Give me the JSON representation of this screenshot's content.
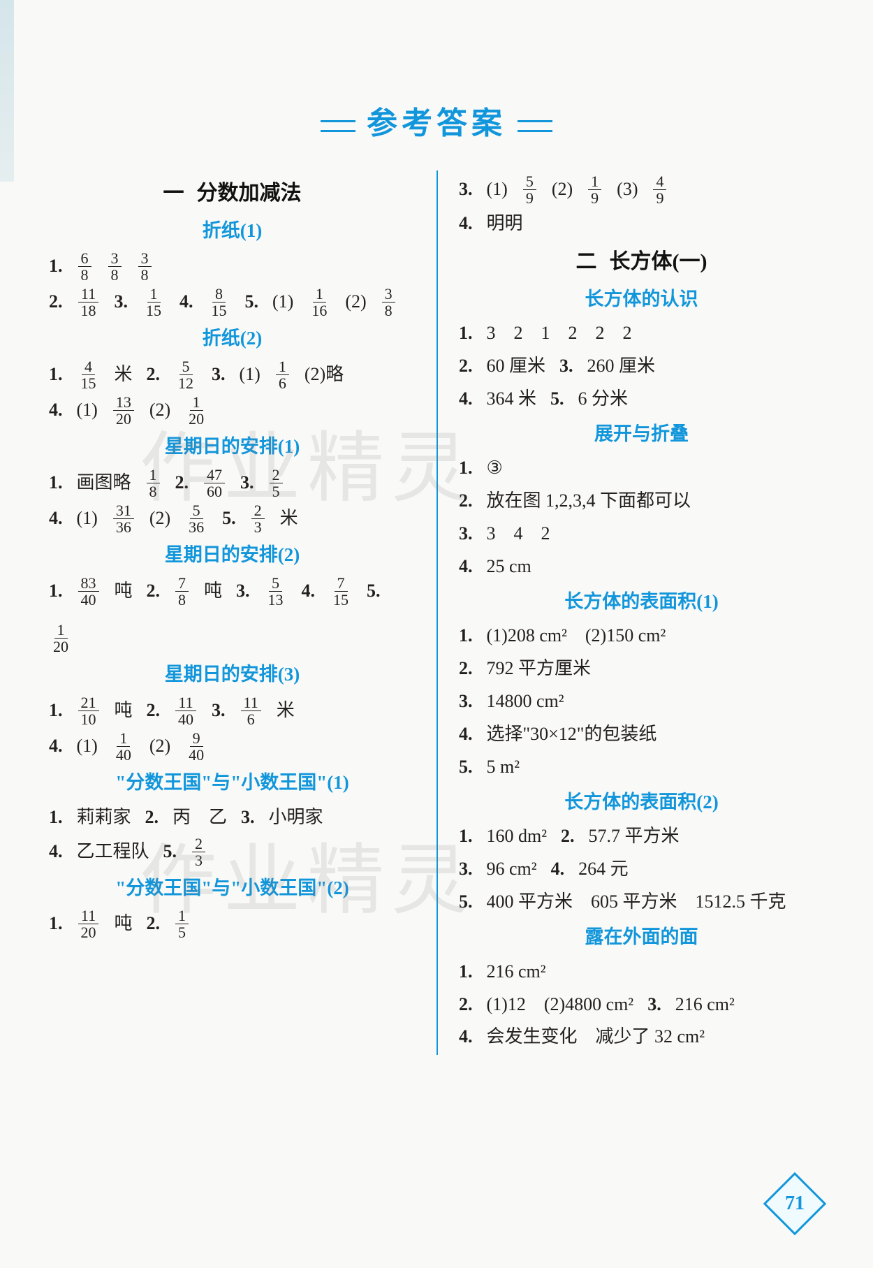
{
  "title": "参考答案",
  "page_number": "71",
  "watermark_text": "作业精灵",
  "colors": {
    "accent": "#1296db",
    "text": "#231f20",
    "background": "#f9f9f7"
  },
  "left": {
    "chapter": {
      "num": "一",
      "title": "分数加减法"
    },
    "sections": [
      {
        "title": "折纸(1)",
        "lines": [
          [
            {
              "t": "n",
              "v": "1."
            },
            {
              "t": "f",
              "n": "6",
              "d": "8"
            },
            {
              "t": "f",
              "n": "3",
              "d": "8"
            },
            {
              "t": "f",
              "n": "3",
              "d": "8"
            }
          ],
          [
            {
              "t": "n",
              "v": "2."
            },
            {
              "t": "f",
              "n": "11",
              "d": "18"
            },
            {
              "t": "n",
              "v": "3."
            },
            {
              "t": "f",
              "n": "1",
              "d": "15"
            },
            {
              "t": "n",
              "v": "4."
            },
            {
              "t": "f",
              "n": "8",
              "d": "15"
            },
            {
              "t": "n",
              "v": "5."
            },
            {
              "t": "p",
              "v": "(1)"
            },
            {
              "t": "f",
              "n": "1",
              "d": "16"
            },
            {
              "t": "p",
              "v": "(2)"
            },
            {
              "t": "f",
              "n": "3",
              "d": "8"
            }
          ]
        ]
      },
      {
        "title": "折纸(2)",
        "lines": [
          [
            {
              "t": "n",
              "v": "1."
            },
            {
              "t": "f",
              "n": "4",
              "d": "15"
            },
            {
              "t": "p",
              "v": "米"
            },
            {
              "t": "n",
              "v": "2."
            },
            {
              "t": "f",
              "n": "5",
              "d": "12"
            },
            {
              "t": "n",
              "v": "3."
            },
            {
              "t": "p",
              "v": "(1)"
            },
            {
              "t": "f",
              "n": "1",
              "d": "6"
            },
            {
              "t": "p",
              "v": "(2)略"
            }
          ],
          [
            {
              "t": "n",
              "v": "4."
            },
            {
              "t": "p",
              "v": "(1)"
            },
            {
              "t": "f",
              "n": "13",
              "d": "20"
            },
            {
              "t": "p",
              "v": "(2)"
            },
            {
              "t": "f",
              "n": "1",
              "d": "20"
            }
          ]
        ]
      },
      {
        "title": "星期日的安排(1)",
        "lines": [
          [
            {
              "t": "n",
              "v": "1."
            },
            {
              "t": "p",
              "v": "画图略"
            },
            {
              "t": "f",
              "n": "1",
              "d": "8"
            },
            {
              "t": "n",
              "v": "2."
            },
            {
              "t": "f",
              "n": "47",
              "d": "60"
            },
            {
              "t": "n",
              "v": "3."
            },
            {
              "t": "f",
              "n": "2",
              "d": "5"
            }
          ],
          [
            {
              "t": "n",
              "v": "4."
            },
            {
              "t": "p",
              "v": "(1)"
            },
            {
              "t": "f",
              "n": "31",
              "d": "36"
            },
            {
              "t": "p",
              "v": "(2)"
            },
            {
              "t": "f",
              "n": "5",
              "d": "36"
            },
            {
              "t": "n",
              "v": "5."
            },
            {
              "t": "f",
              "n": "2",
              "d": "3"
            },
            {
              "t": "p",
              "v": "米"
            }
          ]
        ]
      },
      {
        "title": "星期日的安排(2)",
        "lines": [
          [
            {
              "t": "n",
              "v": "1."
            },
            {
              "t": "f",
              "n": "83",
              "d": "40"
            },
            {
              "t": "p",
              "v": "吨"
            },
            {
              "t": "n",
              "v": "2."
            },
            {
              "t": "f",
              "n": "7",
              "d": "8"
            },
            {
              "t": "p",
              "v": "吨"
            },
            {
              "t": "n",
              "v": "3."
            },
            {
              "t": "f",
              "n": "5",
              "d": "13"
            },
            {
              "t": "n",
              "v": "4."
            },
            {
              "t": "f",
              "n": "7",
              "d": "15"
            },
            {
              "t": "n",
              "v": "5."
            },
            {
              "t": "f",
              "n": "1",
              "d": "20"
            }
          ]
        ]
      },
      {
        "title": "星期日的安排(3)",
        "lines": [
          [
            {
              "t": "n",
              "v": "1."
            },
            {
              "t": "f",
              "n": "21",
              "d": "10"
            },
            {
              "t": "p",
              "v": "吨"
            },
            {
              "t": "n",
              "v": "2."
            },
            {
              "t": "f",
              "n": "11",
              "d": "40"
            },
            {
              "t": "n",
              "v": "3."
            },
            {
              "t": "f",
              "n": "11",
              "d": "6"
            },
            {
              "t": "p",
              "v": "米"
            }
          ],
          [
            {
              "t": "n",
              "v": "4."
            },
            {
              "t": "p",
              "v": "(1)"
            },
            {
              "t": "f",
              "n": "1",
              "d": "40"
            },
            {
              "t": "p",
              "v": "(2)"
            },
            {
              "t": "f",
              "n": "9",
              "d": "40"
            }
          ]
        ]
      },
      {
        "title": "\"分数王国\"与\"小数王国\"(1)",
        "lines": [
          [
            {
              "t": "n",
              "v": "1."
            },
            {
              "t": "p",
              "v": "莉莉家"
            },
            {
              "t": "n",
              "v": "2."
            },
            {
              "t": "p",
              "v": "丙　乙"
            },
            {
              "t": "n",
              "v": "3."
            },
            {
              "t": "p",
              "v": "小明家"
            }
          ],
          [
            {
              "t": "n",
              "v": "4."
            },
            {
              "t": "p",
              "v": "乙工程队"
            },
            {
              "t": "n",
              "v": "5."
            },
            {
              "t": "f",
              "n": "2",
              "d": "3"
            }
          ]
        ]
      },
      {
        "title": "\"分数王国\"与\"小数王国\"(2)",
        "lines": [
          [
            {
              "t": "n",
              "v": "1."
            },
            {
              "t": "f",
              "n": "11",
              "d": "20"
            },
            {
              "t": "p",
              "v": "吨"
            },
            {
              "t": "n",
              "v": "2."
            },
            {
              "t": "f",
              "n": "1",
              "d": "5"
            }
          ]
        ]
      }
    ]
  },
  "right_top_lines": [
    [
      {
        "t": "n",
        "v": "3."
      },
      {
        "t": "p",
        "v": "(1)"
      },
      {
        "t": "f",
        "n": "5",
        "d": "9"
      },
      {
        "t": "p",
        "v": "(2)"
      },
      {
        "t": "f",
        "n": "1",
        "d": "9"
      },
      {
        "t": "p",
        "v": "(3)"
      },
      {
        "t": "f",
        "n": "4",
        "d": "9"
      }
    ],
    [
      {
        "t": "n",
        "v": "4."
      },
      {
        "t": "p",
        "v": "明明"
      }
    ]
  ],
  "right": {
    "chapter": {
      "num": "二",
      "title": "长方体(一)"
    },
    "sections": [
      {
        "title": "长方体的认识",
        "lines": [
          [
            {
              "t": "n",
              "v": "1."
            },
            {
              "t": "p",
              "v": "3　2　1　2　2　2"
            }
          ],
          [
            {
              "t": "n",
              "v": "2."
            },
            {
              "t": "p",
              "v": "60 厘米"
            },
            {
              "t": "n",
              "v": "3."
            },
            {
              "t": "p",
              "v": "260 厘米"
            }
          ],
          [
            {
              "t": "n",
              "v": "4."
            },
            {
              "t": "p",
              "v": "364 米"
            },
            {
              "t": "n",
              "v": "5."
            },
            {
              "t": "p",
              "v": "6 分米"
            }
          ]
        ]
      },
      {
        "title": "展开与折叠",
        "lines": [
          [
            {
              "t": "n",
              "v": "1."
            },
            {
              "t": "p",
              "v": "③"
            }
          ],
          [
            {
              "t": "n",
              "v": "2."
            },
            {
              "t": "p",
              "v": "放在图 1,2,3,4 下面都可以"
            }
          ],
          [
            {
              "t": "n",
              "v": "3."
            },
            {
              "t": "p",
              "v": "3　4　2"
            }
          ],
          [
            {
              "t": "n",
              "v": "4."
            },
            {
              "t": "p",
              "v": "25 cm"
            }
          ]
        ]
      },
      {
        "title": "长方体的表面积(1)",
        "lines": [
          [
            {
              "t": "n",
              "v": "1."
            },
            {
              "t": "p",
              "v": "(1)208 cm²　(2)150 cm²"
            }
          ],
          [
            {
              "t": "n",
              "v": "2."
            },
            {
              "t": "p",
              "v": "792 平方厘米"
            }
          ],
          [
            {
              "t": "n",
              "v": "3."
            },
            {
              "t": "p",
              "v": "14800 cm²"
            }
          ],
          [
            {
              "t": "n",
              "v": "4."
            },
            {
              "t": "p",
              "v": "选择\"30×12\"的包装纸"
            }
          ],
          [
            {
              "t": "n",
              "v": "5."
            },
            {
              "t": "p",
              "v": "5 m²"
            }
          ]
        ]
      },
      {
        "title": "长方体的表面积(2)",
        "lines": [
          [
            {
              "t": "n",
              "v": "1."
            },
            {
              "t": "p",
              "v": "160 dm²"
            },
            {
              "t": "n",
              "v": "2."
            },
            {
              "t": "p",
              "v": "57.7 平方米"
            }
          ],
          [
            {
              "t": "n",
              "v": "3."
            },
            {
              "t": "p",
              "v": "96 cm²"
            },
            {
              "t": "n",
              "v": "4."
            },
            {
              "t": "p",
              "v": "264 元"
            }
          ],
          [
            {
              "t": "n",
              "v": "5."
            },
            {
              "t": "p",
              "v": "400 平方米　605 平方米　1512.5 千克"
            }
          ]
        ]
      },
      {
        "title": "露在外面的面",
        "lines": [
          [
            {
              "t": "n",
              "v": "1."
            },
            {
              "t": "p",
              "v": "216 cm²"
            }
          ],
          [
            {
              "t": "n",
              "v": "2."
            },
            {
              "t": "p",
              "v": "(1)12　(2)4800 cm²"
            },
            {
              "t": "n",
              "v": "3."
            },
            {
              "t": "p",
              "v": "216 cm²"
            }
          ],
          [
            {
              "t": "n",
              "v": "4."
            },
            {
              "t": "p",
              "v": "会发生变化　减少了 32 cm²"
            }
          ]
        ]
      }
    ]
  }
}
